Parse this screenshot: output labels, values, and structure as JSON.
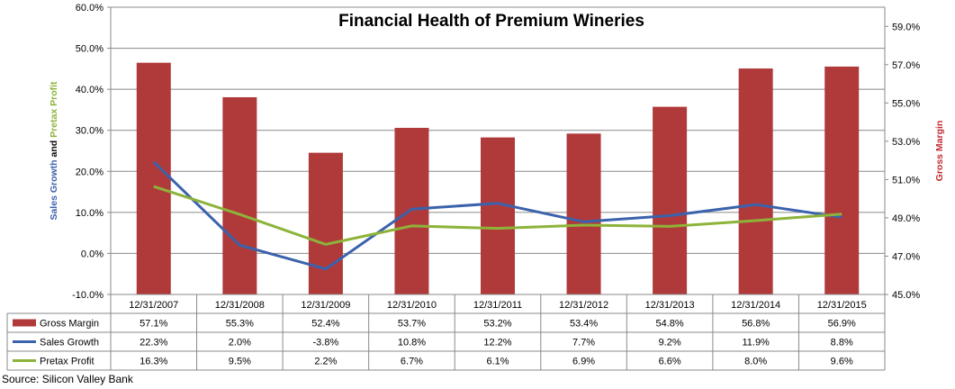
{
  "chart_data": {
    "type": "bar+line",
    "title": "Financial Health of Premium Wineries",
    "categories": [
      "12/31/2007",
      "12/31/2008",
      "12/31/2009",
      "12/31/2010",
      "12/31/2011",
      "12/31/2012",
      "12/31/2013",
      "12/31/2014",
      "12/31/2015"
    ],
    "left_axis": {
      "ylim": [
        -10,
        60
      ],
      "ticks": [
        "-10.0%",
        "0.0%",
        "10.0%",
        "20.0%",
        "30.0%",
        "40.0%",
        "50.0%",
        "60.0%"
      ],
      "label_parts": [
        {
          "text": "Sales Growth",
          "color": "#3B62AC"
        },
        {
          "text": " and ",
          "color": "#000000"
        },
        {
          "text": "Pretax Profit",
          "color": "#8DB33A"
        }
      ]
    },
    "right_axis": {
      "ylim": [
        45,
        60
      ],
      "ticks": [
        "45.0%",
        "47.0%",
        "49.0%",
        "51.0%",
        "53.0%",
        "55.0%",
        "57.0%",
        "59.0%"
      ],
      "label": "Gross Margin",
      "label_color": "#C0282D"
    },
    "series": [
      {
        "name": "Gross Margin",
        "type": "bar",
        "axis": "right",
        "color": "#B03A3A",
        "values": [
          57.1,
          55.3,
          52.4,
          53.7,
          53.2,
          53.4,
          54.8,
          56.8,
          56.9
        ],
        "labels": [
          "57.1%",
          "55.3%",
          "52.4%",
          "53.7%",
          "53.2%",
          "53.4%",
          "54.8%",
          "56.8%",
          "56.9%"
        ]
      },
      {
        "name": "Sales Growth",
        "type": "line",
        "axis": "left",
        "color": "#3B62AC",
        "values": [
          22.3,
          2.0,
          -3.8,
          10.8,
          12.2,
          7.7,
          9.2,
          11.9,
          8.8
        ],
        "labels": [
          "22.3%",
          "2.0%",
          "-3.8%",
          "10.8%",
          "12.2%",
          "7.7%",
          "9.2%",
          "11.9%",
          "8.8%"
        ]
      },
      {
        "name": "Pretax Profit",
        "type": "line",
        "axis": "left",
        "color": "#8DB33A",
        "values": [
          16.3,
          9.5,
          2.2,
          6.7,
          6.1,
          6.9,
          6.6,
          8.0,
          9.6
        ],
        "labels": [
          "16.3%",
          "9.5%",
          "2.2%",
          "6.7%",
          "6.1%",
          "6.9%",
          "6.6%",
          "8.0%",
          "9.6%"
        ]
      }
    ],
    "grid": true,
    "legend": "data-table"
  },
  "source": "Source: Silicon Valley Bank"
}
